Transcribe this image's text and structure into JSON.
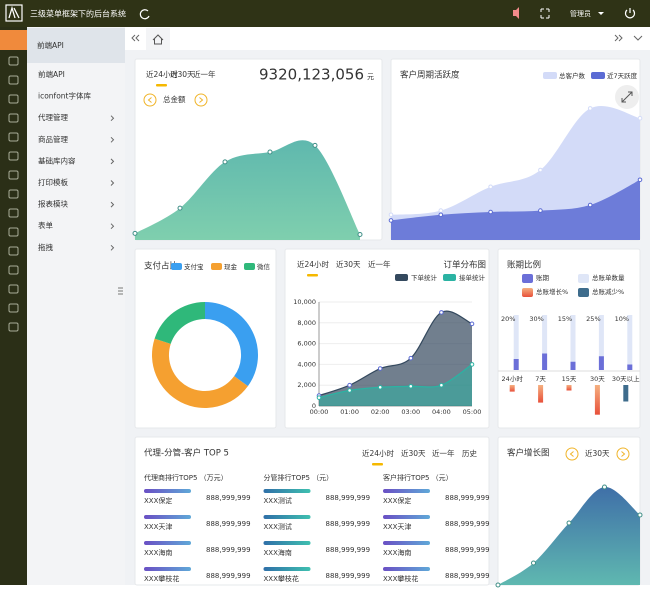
{
  "header": {
    "title": "三级菜单框架下的后台系统",
    "user": "管理员"
  },
  "sidebar": {
    "title": "前端API",
    "items": [
      {
        "label": "前端API",
        "submenu": false
      },
      {
        "label": "iconfont字体库",
        "submenu": false
      },
      {
        "label": "代理管理",
        "submenu": true
      },
      {
        "label": "商品管理",
        "submenu": true
      },
      {
        "label": "基础库内容",
        "submenu": true
      },
      {
        "label": "打印模板",
        "submenu": true
      },
      {
        "label": "报表模块",
        "submenu": true
      },
      {
        "label": "表单",
        "submenu": true
      },
      {
        "label": "拖拽",
        "submenu": true
      }
    ]
  },
  "chart_data": [
    {
      "type": "area",
      "tabs": [
        "近24小时",
        "近30天",
        "近一年"
      ],
      "total": "9320,123,056",
      "unit": "元",
      "label": "总金额",
      "color": "#62c0b2",
      "values": [
        6,
        29,
        71,
        80,
        86,
        5
      ]
    },
    {
      "type": "area",
      "title": "客户周期活跃度",
      "series": [
        {
          "name": "总客户数",
          "color": "#d3dbf8",
          "values": [
            18,
            21,
            38,
            50,
            94,
            87
          ]
        },
        {
          "name": "近7天跃度",
          "color": "#5b6bd4",
          "values": [
            14,
            18,
            20,
            21,
            25,
            43
          ]
        }
      ]
    },
    {
      "type": "pie",
      "title": "支付占比",
      "donut": true,
      "categories": [
        "支付宝",
        "现金",
        "微信"
      ],
      "values": [
        35,
        45,
        20
      ],
      "colors": [
        "#3a9ff0",
        "#f5a030",
        "#2fb87a"
      ]
    },
    {
      "type": "line",
      "area": true,
      "title": "订单分布图",
      "tabs": [
        "近24小时",
        "近30天",
        "近一年"
      ],
      "categories": [
        "00:00",
        "01:00",
        "02:00",
        "03:00",
        "04:00",
        "05:00"
      ],
      "series": [
        {
          "name": "下单统计",
          "color": "#34495e",
          "values": [
            1000,
            2000,
            3600,
            4600,
            9000,
            7900
          ]
        },
        {
          "name": "接单统计",
          "color": "#2bb3a3",
          "values": [
            800,
            1500,
            1800,
            1900,
            2000,
            4000
          ]
        }
      ],
      "ylim": [
        0,
        10000
      ],
      "yticks": [
        0,
        {
          "value": 2000,
          "label": "2,000"
        },
        {
          "value": 4000,
          "label": "4,000"
        },
        {
          "value": 6000,
          "label": "6,000"
        },
        {
          "value": 8000,
          "label": "8,000"
        },
        {
          "value": 10000,
          "label": "10,000"
        }
      ],
      "grid": true
    },
    {
      "type": "bar",
      "title": "账期比例",
      "categories": [
        "24小时",
        "7天",
        "15天",
        "30天",
        "30天以上"
      ],
      "series": [
        {
          "name": "账期",
          "color": "#6b6fd8",
          "values": [
            20,
            30,
            15,
            25,
            10
          ],
          "value_labels": [
            "20%",
            "30%",
            "15%",
            "25%",
            "10%"
          ]
        },
        {
          "name": "总账单数量",
          "color": "#dfe6f7",
          "values": [
            100,
            100,
            100,
            100,
            100
          ]
        },
        {
          "name": "总账增长%",
          "color": "#f08a4b",
          "values": [
            6,
            16,
            5,
            27,
            null
          ]
        },
        {
          "name": "总账减少%",
          "color": "#3e6c8c",
          "values": [
            null,
            null,
            null,
            null,
            15
          ]
        }
      ]
    },
    {
      "type": "area",
      "title": "客户增长图",
      "period": "近30天",
      "color": "#4a7fb0",
      "values": [
        0,
        22,
        62,
        98,
        70
      ]
    }
  ],
  "top5": {
    "title": "代理-分管-客户 TOP 5",
    "tabs": [
      "近24小时",
      "近30天",
      "近一年",
      "历史"
    ],
    "columns": [
      {
        "header": "代理商排行TOP5 （万元）",
        "rows": [
          {
            "name": "XXX保定",
            "value": "888,999,999"
          },
          {
            "name": "XXX天津",
            "value": "888,999,999"
          },
          {
            "name": "XXX海南",
            "value": "888,999,999"
          },
          {
            "name": "XXX攀枝花",
            "value": "888,999,999"
          }
        ]
      },
      {
        "header": "分管排行TOP5 （元）",
        "rows": [
          {
            "name": "XXX测试",
            "value": "888,999,999"
          },
          {
            "name": "XXX测试",
            "value": "888,999,999"
          },
          {
            "name": "XXX海南",
            "value": "888,999,999"
          },
          {
            "name": "XXX攀枝花",
            "value": "888,999,999"
          }
        ]
      },
      {
        "header": "客户排行TOP5 （元）",
        "rows": [
          {
            "name": "XXX保定",
            "value": "888,999,999"
          },
          {
            "name": "XXX天津",
            "value": "888,999,999"
          },
          {
            "name": "XXX海南",
            "value": "888,999,999"
          },
          {
            "name": "XXX攀枝花",
            "value": "888,999,999"
          }
        ]
      }
    ]
  }
}
